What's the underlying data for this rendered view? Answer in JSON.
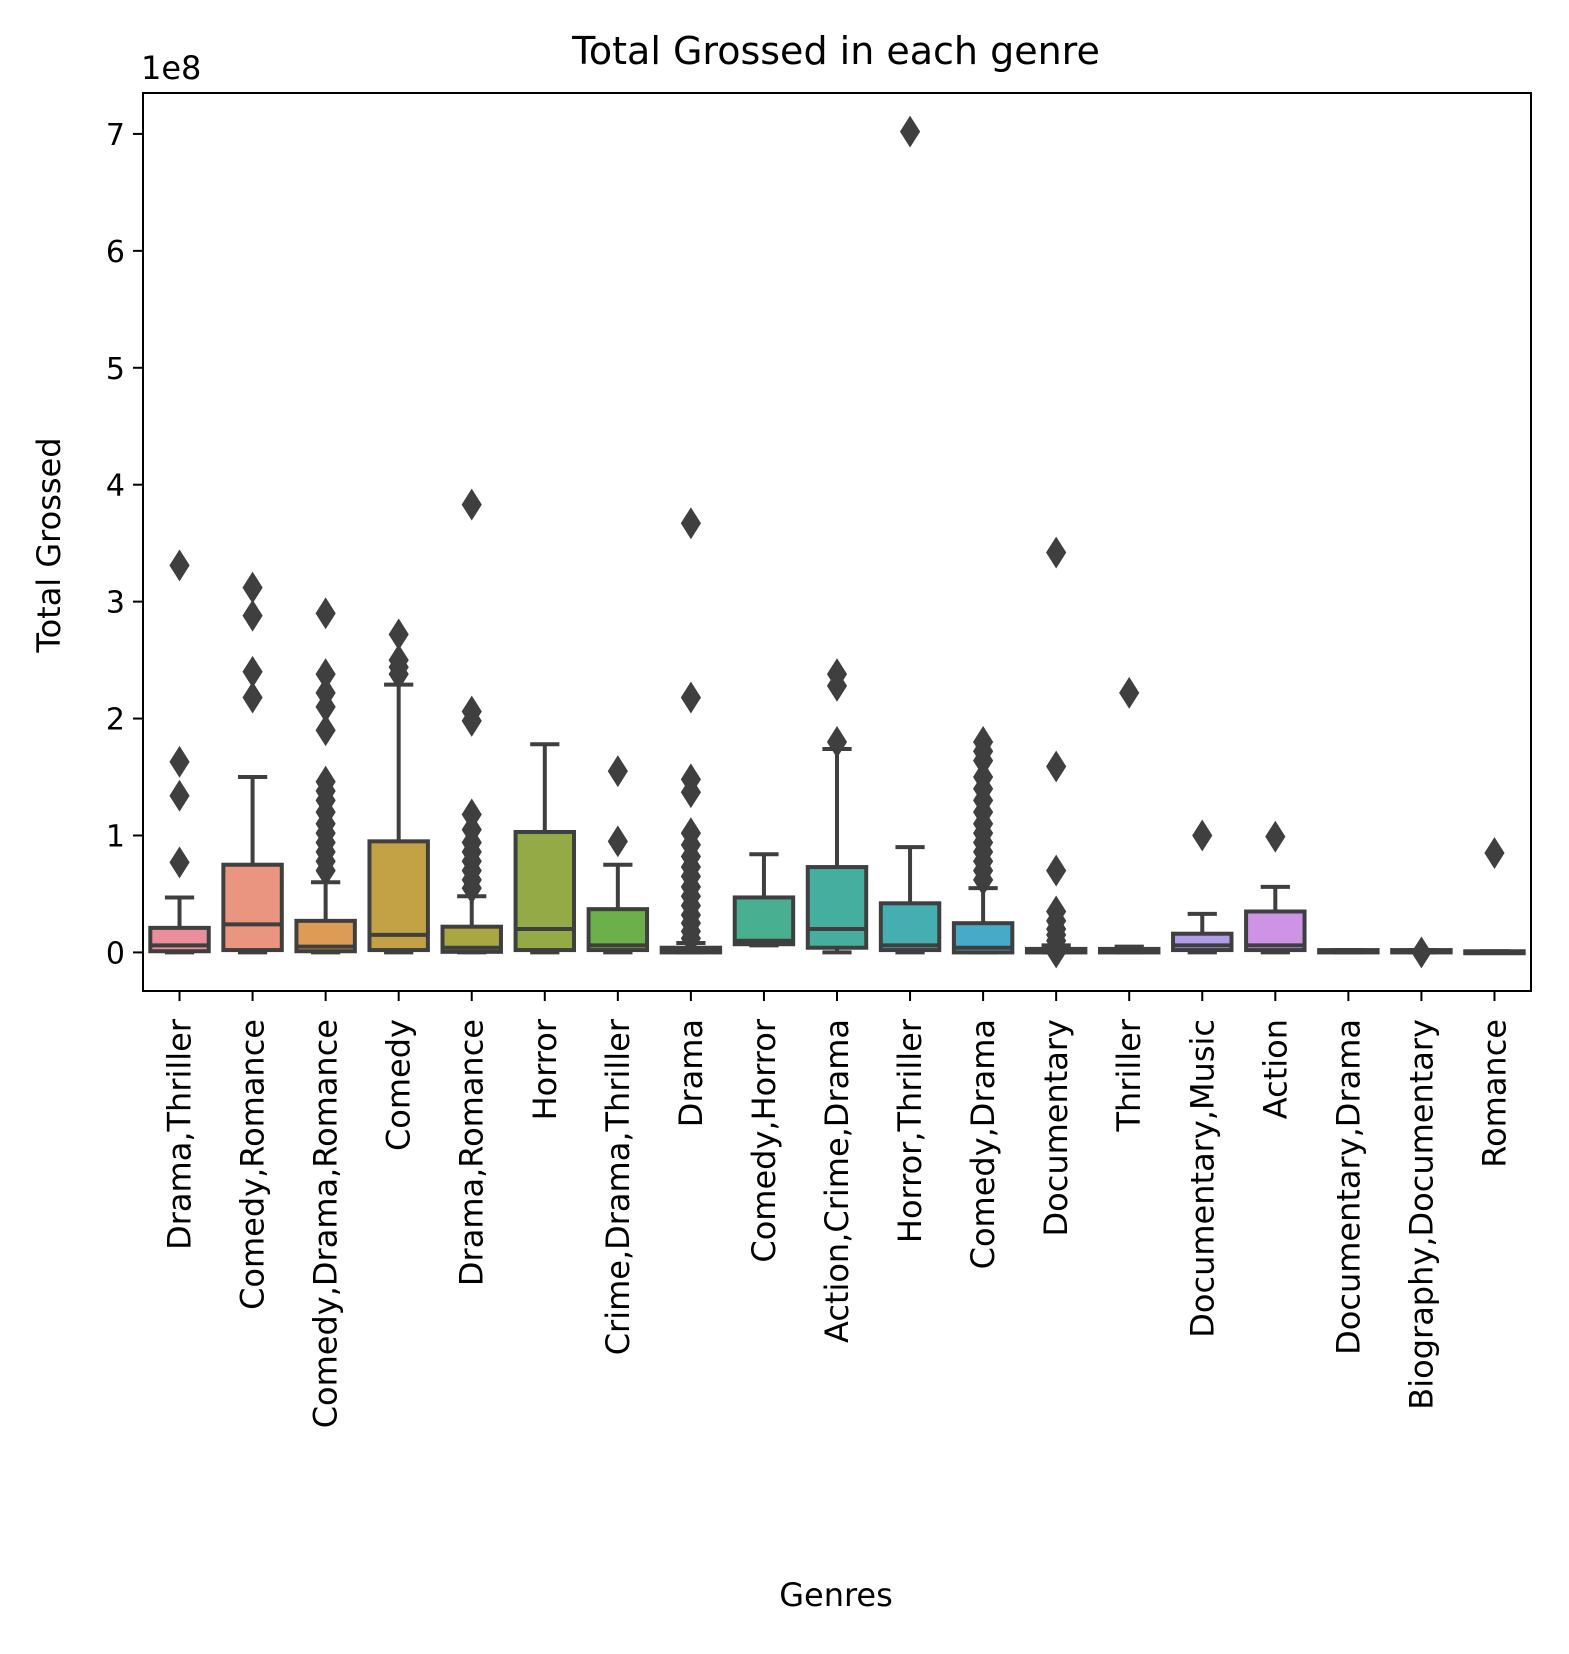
{
  "chart_data": {
    "type": "box",
    "title": "Total Grossed in each genre",
    "xlabel": "Genres",
    "ylabel": "Total Grossed",
    "y_offset_label": "1e8",
    "ylim": [
      -0.33,
      7.35
    ],
    "y_ticks": [
      0,
      1,
      2,
      3,
      4,
      5,
      6,
      7
    ],
    "y_tick_labels": [
      "0",
      "1",
      "2",
      "3",
      "4",
      "5",
      "6",
      "7"
    ],
    "y_scale_factor": 100000000,
    "y_units_note": "values in units of 1e8",
    "grid": false,
    "legend": "none",
    "box_edge_color": "#3f3f3f",
    "outlier_marker": "diamond",
    "categories": [
      "Drama,Thriller",
      "Comedy,Romance",
      "Comedy,Drama,Romance",
      "Comedy",
      "Drama,Romance",
      "Horror",
      "Crime,Drama,Thriller",
      "Drama",
      "Comedy,Horror",
      "Action,Crime,Drama",
      "Horror,Thriller",
      "Comedy,Drama",
      "Documentary",
      "Thriller",
      "Documentary,Music",
      "Action",
      "Documentary,Drama",
      "Biography,Documentary",
      "Romance"
    ],
    "colors": [
      "#ea8e9b",
      "#e9957f",
      "#de9b56",
      "#c2a244",
      "#a8a742",
      "#93aa47",
      "#6bb04a",
      "#4cb180",
      "#48b091",
      "#45ae9f",
      "#45aeb0",
      "#47aac6",
      "#5fa7de",
      "#8fa3e5",
      "#b09ce9",
      "#cd94e6",
      "#e08fde",
      "#e88fcb",
      "#ea8db6"
    ],
    "boxes": [
      {
        "whislo": 0.0,
        "q1": 0.01,
        "med": 0.06,
        "q3": 0.21,
        "whishi": 0.47,
        "fliers": [
          0.77,
          1.34,
          1.63,
          3.31
        ]
      },
      {
        "whislo": 0.0,
        "q1": 0.02,
        "med": 0.24,
        "q3": 0.75,
        "whishi": 1.5,
        "fliers": [
          2.18,
          2.4,
          2.88,
          3.12
        ]
      },
      {
        "whislo": 0.0,
        "q1": 0.01,
        "med": 0.05,
        "q3": 0.27,
        "whishi": 0.6,
        "fliers": [
          0.7,
          0.78,
          0.86,
          0.94,
          1.02,
          1.1,
          1.2,
          1.3,
          1.38,
          1.46,
          1.9,
          2.1,
          2.22,
          2.38,
          2.9
        ]
      },
      {
        "whislo": 0.0,
        "q1": 0.02,
        "med": 0.15,
        "q3": 0.95,
        "whishi": 2.29,
        "fliers": [
          2.38,
          2.44,
          2.5,
          2.72
        ]
      },
      {
        "whislo": 0.0,
        "q1": 0.005,
        "med": 0.04,
        "q3": 0.22,
        "whishi": 0.48,
        "fliers": [
          0.55,
          0.62,
          0.7,
          0.78,
          0.86,
          0.94,
          1.05,
          1.18,
          1.98,
          2.06,
          3.83
        ]
      },
      {
        "whislo": 0.0,
        "q1": 0.02,
        "med": 0.2,
        "q3": 1.03,
        "whishi": 1.78,
        "fliers": []
      },
      {
        "whislo": 0.0,
        "q1": 0.02,
        "med": 0.06,
        "q3": 0.37,
        "whishi": 0.75,
        "fliers": [
          0.95,
          1.55
        ]
      },
      {
        "whislo": 0.0,
        "q1": 0.0,
        "med": 0.02,
        "q3": 0.04,
        "whishi": 0.08,
        "fliers": [
          0.12,
          0.18,
          0.25,
          0.32,
          0.4,
          0.48,
          0.56,
          0.65,
          0.73,
          0.82,
          0.92,
          1.02,
          1.37,
          1.48,
          2.18,
          3.67
        ]
      },
      {
        "whislo": 0.06,
        "q1": 0.07,
        "med": 0.1,
        "q3": 0.47,
        "whishi": 0.84,
        "fliers": []
      },
      {
        "whislo": 0.0,
        "q1": 0.04,
        "med": 0.2,
        "q3": 0.73,
        "whishi": 1.74,
        "fliers": [
          1.8,
          2.28,
          2.38
        ]
      },
      {
        "whislo": 0.0,
        "q1": 0.02,
        "med": 0.06,
        "q3": 0.42,
        "whishi": 0.9,
        "fliers": [
          7.02
        ]
      },
      {
        "whislo": 0.0,
        "q1": 0.0,
        "med": 0.04,
        "q3": 0.25,
        "whishi": 0.55,
        "fliers": [
          0.62,
          0.7,
          0.78,
          0.86,
          0.94,
          1.02,
          1.1,
          1.2,
          1.3,
          1.4,
          1.5,
          1.64,
          1.72,
          1.8
        ]
      },
      {
        "whislo": 0.0,
        "q1": 0.0,
        "med": 0.01,
        "q3": 0.03,
        "whishi": 0.06,
        "fliers": [
          0.0,
          0.1,
          0.15,
          0.2,
          0.27,
          0.35,
          0.7,
          1.59,
          3.42
        ]
      },
      {
        "whislo": 0.0,
        "q1": 0.0,
        "med": 0.01,
        "q3": 0.03,
        "whishi": 0.05,
        "fliers": [
          2.22
        ]
      },
      {
        "whislo": 0.0,
        "q1": 0.02,
        "med": 0.06,
        "q3": 0.16,
        "whishi": 0.33,
        "fliers": [
          1.0
        ]
      },
      {
        "whislo": 0.0,
        "q1": 0.02,
        "med": 0.06,
        "q3": 0.35,
        "whishi": 0.56,
        "fliers": [
          0.99
        ]
      },
      {
        "whislo": 0.0,
        "q1": 0.0,
        "med": 0.01,
        "q3": 0.02,
        "whishi": 0.02,
        "fliers": []
      },
      {
        "whislo": 0.0,
        "q1": 0.0,
        "med": 0.01,
        "q3": 0.02,
        "whishi": 0.02,
        "fliers": [
          0.0
        ]
      },
      {
        "whislo": 0.0,
        "q1": 0.0,
        "med": 0.0,
        "q3": 0.01,
        "whishi": 0.01,
        "fliers": [
          0.85
        ]
      }
    ]
  }
}
